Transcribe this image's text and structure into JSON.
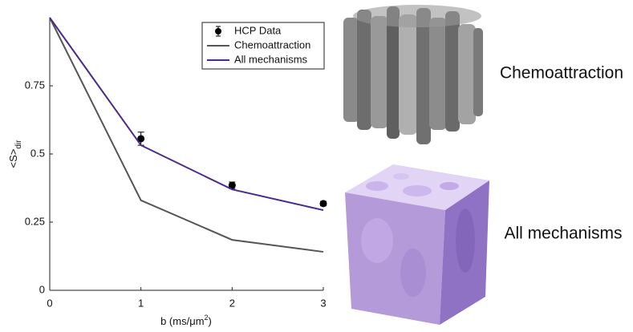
{
  "chart_data": {
    "type": "line",
    "y_label": [
      "<S>",
      "dir"
    ],
    "x_label": [
      "b (ms/μm",
      "2",
      ")"
    ],
    "xlim": [
      0,
      3
    ],
    "xticks": [
      0,
      1,
      2,
      3
    ],
    "ylim": [
      0,
      1
    ],
    "yticks": [
      0,
      0.25,
      0.5,
      0.75
    ],
    "legend": "upper right",
    "series": [
      {
        "name": "HCP Data",
        "kind": "errorbar",
        "color": "#000000",
        "x": [
          1,
          2,
          3
        ],
        "values": [
          0.556,
          0.385,
          0.318
        ],
        "errors": [
          0.024,
          0.012,
          0.008
        ]
      },
      {
        "name": "Chemoattraction",
        "kind": "line",
        "color": "#555555",
        "x": [
          0,
          1,
          2,
          3
        ],
        "values": [
          1,
          0.33,
          0.185,
          0.141
        ]
      },
      {
        "name": "All mechanisms",
        "kind": "line",
        "color": "#4b2a8f",
        "x": [
          0,
          1,
          2,
          3
        ],
        "values": [
          1,
          0.532,
          0.37,
          0.294
        ]
      }
    ]
  },
  "renders": [
    {
      "label": "Chemoattraction"
    },
    {
      "label": "All mechanisms"
    }
  ]
}
